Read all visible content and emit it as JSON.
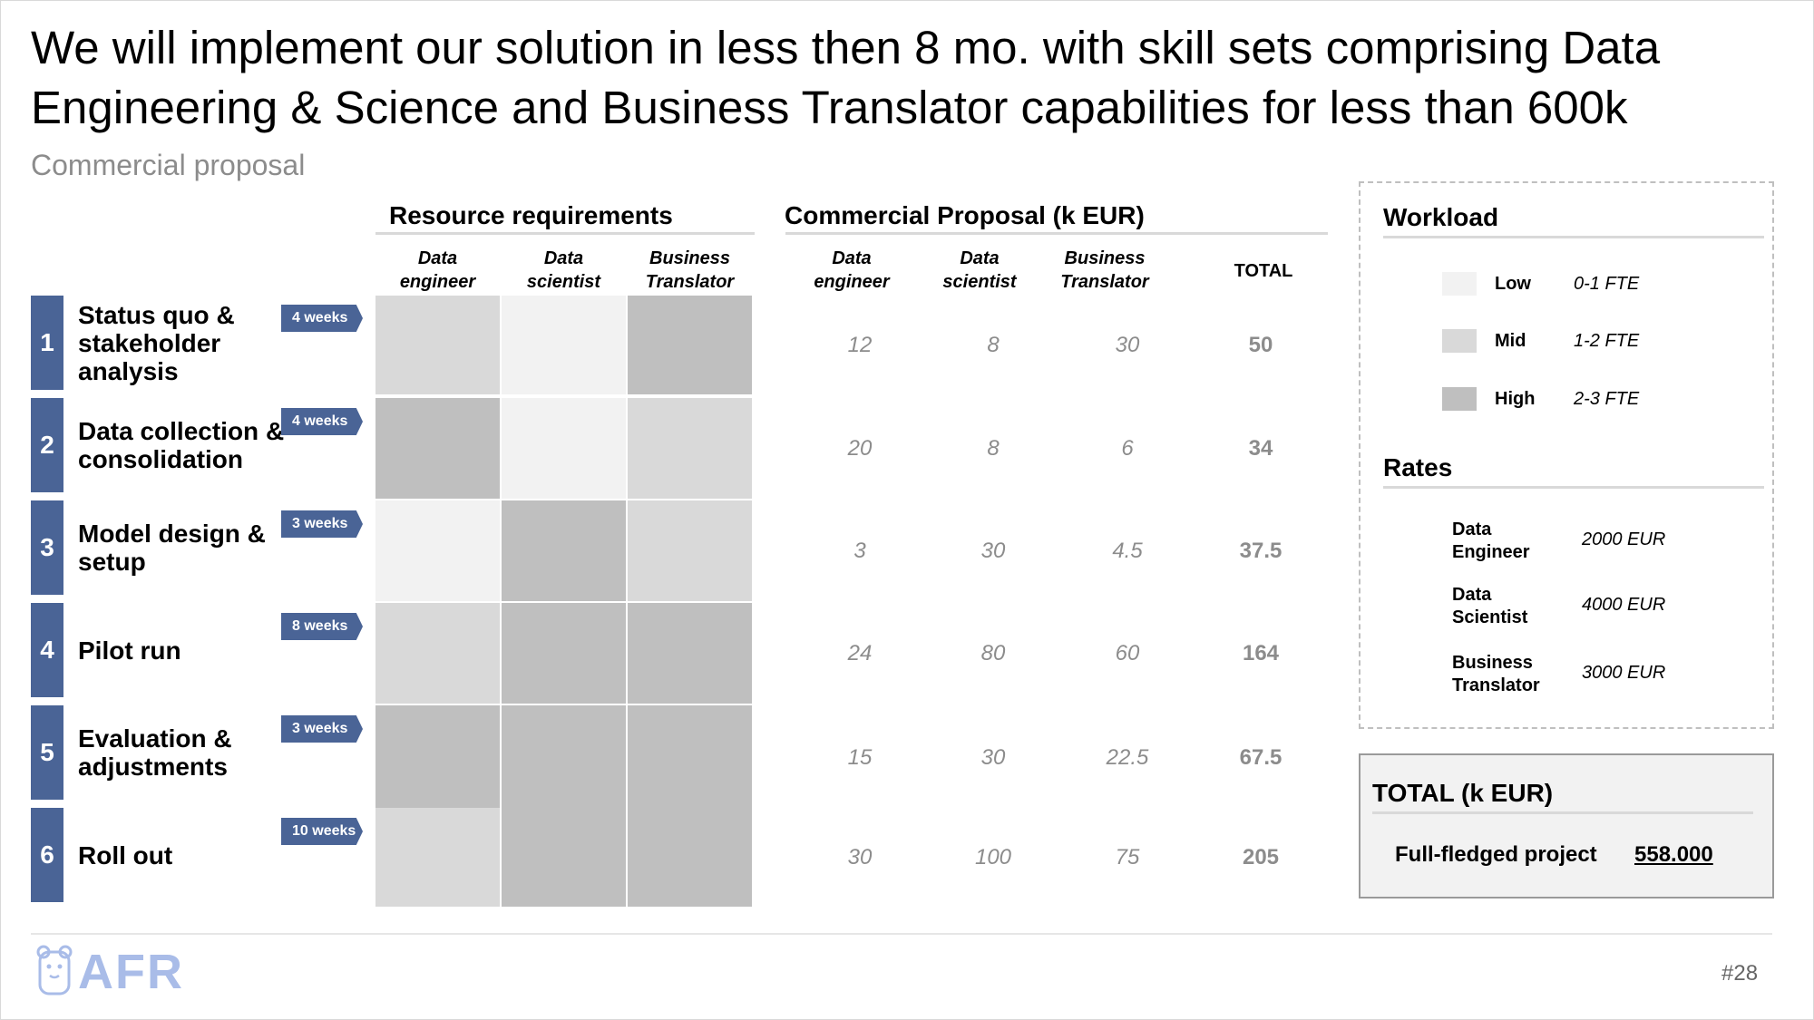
{
  "title": "We will implement our solution in less then 8 mo. with skill sets comprising Data Engineering & Science and Business Translator capabilities for less than 600k",
  "subtitle": "Commercial proposal",
  "resource": {
    "heading": "Resource requirements",
    "columns": [
      {
        "line1": "Data",
        "line2": "engineer"
      },
      {
        "line1": "Data",
        "line2": "scientist"
      },
      {
        "line1": "Business",
        "line2": "Translator"
      }
    ]
  },
  "proposal": {
    "heading": "Commercial Proposal (k EUR)",
    "columns": [
      {
        "line1": "Data",
        "line2": "engineer"
      },
      {
        "line1": "Data",
        "line2": "scientist"
      },
      {
        "line1": "Business",
        "line2": "Translator"
      }
    ],
    "total_label": "TOTAL"
  },
  "steps": [
    {
      "num": "1",
      "label": "Status quo & stakeholder analysis",
      "duration": "4 weeks",
      "workload": [
        "mid",
        "low",
        "high"
      ],
      "values": [
        "12",
        "8",
        "30"
      ],
      "total": "50"
    },
    {
      "num": "2",
      "label": "Data collection & consolidation",
      "duration": "4 weeks",
      "workload": [
        "high",
        "low",
        "mid"
      ],
      "values": [
        "20",
        "8",
        "6"
      ],
      "total": "34"
    },
    {
      "num": "3",
      "label": "Model design & setup",
      "duration": "3 weeks",
      "workload": [
        "low",
        "high",
        "mid"
      ],
      "values": [
        "3",
        "30",
        "4.5"
      ],
      "total": "37.5"
    },
    {
      "num": "4",
      "label": "Pilot run",
      "duration": "8 weeks",
      "workload": [
        "mid",
        "high",
        "high"
      ],
      "values": [
        "24",
        "80",
        "60"
      ],
      "total": "164"
    },
    {
      "num": "5",
      "label": "Evaluation & adjustments",
      "duration": "3 weeks",
      "workload": [
        "high",
        "high",
        "high"
      ],
      "values": [
        "15",
        "30",
        "22.5"
      ],
      "total": "67.5"
    },
    {
      "num": "6",
      "label": "Roll out",
      "duration": "10 weeks",
      "workload": [
        "mid",
        "high",
        "high"
      ],
      "values": [
        "30",
        "100",
        "75"
      ],
      "total": "205"
    }
  ],
  "workload": {
    "heading": "Workload",
    "levels": [
      {
        "name": "Low",
        "fte": "0-1 FTE",
        "color": "#f2f2f2"
      },
      {
        "name": "Mid",
        "fte": "1-2 FTE",
        "color": "#d9d9d9"
      },
      {
        "name": "High",
        "fte": "2-3 FTE",
        "color": "#bfbfbf"
      }
    ]
  },
  "rates": {
    "heading": "Rates",
    "items": [
      {
        "line1": "Data",
        "line2": "Engineer",
        "rate": "2000 EUR"
      },
      {
        "line1": "Data",
        "line2": "Scientist",
        "rate": "4000 EUR"
      },
      {
        "line1": "Business",
        "line2": "Translator",
        "rate": "3000 EUR"
      }
    ]
  },
  "total_box": {
    "heading": "TOTAL (k EUR)",
    "label": "Full-fledged project",
    "value": "558.000"
  },
  "logo_text": "AFR",
  "page_number": "#28",
  "colors": {
    "step_blue": "#4a6496",
    "low": "#f2f2f2",
    "mid": "#d9d9d9",
    "high": "#bfbfbf"
  }
}
